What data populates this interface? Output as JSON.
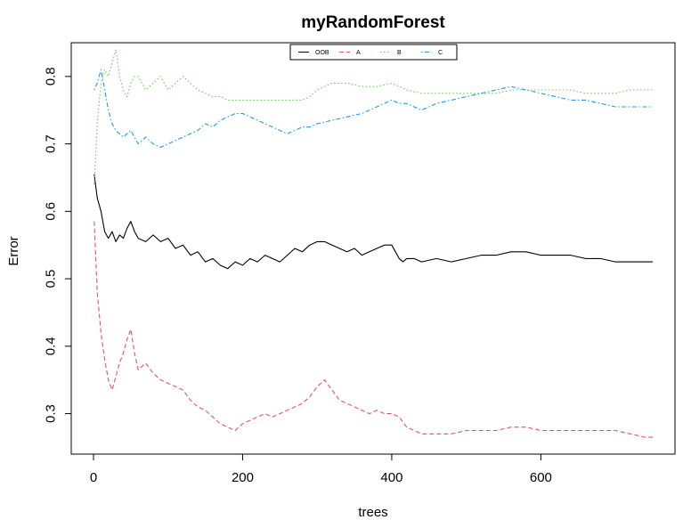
{
  "chart_data": {
    "type": "line",
    "title": "myRandomForest",
    "xlabel": "trees",
    "ylabel": "Error",
    "xlim": [
      0,
      750
    ],
    "ylim": [
      0.24,
      0.85
    ],
    "xticks": [
      0,
      200,
      400,
      600
    ],
    "yticks": [
      0.3,
      0.4,
      0.5,
      0.6,
      0.7,
      0.8
    ],
    "grid": false,
    "legend_position": "top",
    "series": [
      {
        "name": "OOB",
        "color": "#000000",
        "dash": "solid",
        "x": [
          1,
          5,
          10,
          15,
          20,
          25,
          30,
          35,
          40,
          45,
          50,
          55,
          60,
          70,
          80,
          90,
          100,
          110,
          120,
          130,
          140,
          150,
          160,
          170,
          180,
          190,
          200,
          210,
          220,
          230,
          240,
          250,
          260,
          270,
          280,
          290,
          300,
          310,
          320,
          330,
          340,
          350,
          360,
          370,
          380,
          390,
          400,
          405,
          410,
          415,
          420,
          430,
          440,
          460,
          480,
          500,
          520,
          540,
          560,
          580,
          600,
          620,
          640,
          660,
          680,
          700,
          720,
          740,
          750
        ],
        "values": [
          0.655,
          0.62,
          0.6,
          0.57,
          0.56,
          0.57,
          0.555,
          0.565,
          0.56,
          0.575,
          0.585,
          0.57,
          0.56,
          0.555,
          0.565,
          0.555,
          0.56,
          0.545,
          0.55,
          0.535,
          0.54,
          0.525,
          0.53,
          0.52,
          0.515,
          0.525,
          0.52,
          0.53,
          0.525,
          0.535,
          0.53,
          0.525,
          0.535,
          0.545,
          0.54,
          0.55,
          0.555,
          0.555,
          0.55,
          0.545,
          0.54,
          0.545,
          0.535,
          0.54,
          0.545,
          0.55,
          0.55,
          0.54,
          0.53,
          0.525,
          0.53,
          0.53,
          0.525,
          0.53,
          0.525,
          0.53,
          0.535,
          0.535,
          0.54,
          0.54,
          0.535,
          0.535,
          0.535,
          0.53,
          0.53,
          0.525,
          0.525,
          0.525,
          0.525
        ]
      },
      {
        "name": "A",
        "color": "#DF536B",
        "dash": "dashed",
        "x": [
          1,
          5,
          10,
          15,
          20,
          25,
          30,
          35,
          40,
          45,
          50,
          55,
          60,
          70,
          80,
          90,
          100,
          110,
          120,
          130,
          140,
          150,
          160,
          170,
          180,
          190,
          200,
          210,
          220,
          230,
          240,
          250,
          260,
          270,
          280,
          290,
          300,
          310,
          320,
          330,
          340,
          350,
          360,
          370,
          380,
          390,
          400,
          410,
          420,
          430,
          440,
          460,
          480,
          500,
          520,
          540,
          560,
          580,
          600,
          620,
          640,
          660,
          680,
          700,
          720,
          740,
          750
        ],
        "values": [
          0.585,
          0.48,
          0.42,
          0.38,
          0.35,
          0.335,
          0.355,
          0.375,
          0.39,
          0.41,
          0.425,
          0.39,
          0.365,
          0.375,
          0.36,
          0.35,
          0.345,
          0.34,
          0.335,
          0.32,
          0.31,
          0.305,
          0.295,
          0.285,
          0.28,
          0.275,
          0.285,
          0.29,
          0.295,
          0.3,
          0.295,
          0.3,
          0.305,
          0.31,
          0.315,
          0.325,
          0.34,
          0.35,
          0.335,
          0.32,
          0.315,
          0.31,
          0.305,
          0.3,
          0.305,
          0.3,
          0.3,
          0.295,
          0.28,
          0.275,
          0.27,
          0.27,
          0.27,
          0.275,
          0.275,
          0.275,
          0.28,
          0.28,
          0.275,
          0.275,
          0.275,
          0.275,
          0.275,
          0.275,
          0.27,
          0.265,
          0.265
        ]
      },
      {
        "name": "B",
        "color": "#61D04F",
        "dash": "dotted",
        "x": [
          1,
          5,
          10,
          15,
          20,
          25,
          30,
          35,
          40,
          45,
          50,
          55,
          60,
          70,
          80,
          90,
          100,
          110,
          120,
          130,
          140,
          150,
          160,
          170,
          180,
          200,
          220,
          240,
          260,
          280,
          290,
          300,
          320,
          340,
          360,
          380,
          400,
          420,
          440,
          460,
          480,
          500,
          520,
          540,
          560,
          580,
          600,
          620,
          640,
          660,
          680,
          700,
          720,
          740,
          750
        ],
        "values": [
          0.64,
          0.73,
          0.79,
          0.81,
          0.8,
          0.82,
          0.84,
          0.8,
          0.78,
          0.77,
          0.79,
          0.8,
          0.8,
          0.78,
          0.79,
          0.8,
          0.78,
          0.79,
          0.8,
          0.79,
          0.78,
          0.775,
          0.77,
          0.77,
          0.765,
          0.765,
          0.765,
          0.765,
          0.765,
          0.765,
          0.77,
          0.78,
          0.79,
          0.79,
          0.785,
          0.785,
          0.79,
          0.78,
          0.775,
          0.775,
          0.775,
          0.775,
          0.775,
          0.775,
          0.78,
          0.78,
          0.78,
          0.78,
          0.78,
          0.775,
          0.775,
          0.775,
          0.78,
          0.78,
          0.78
        ]
      },
      {
        "name": "C",
        "color": "#2297E6",
        "dash": "dotdash",
        "x": [
          1,
          5,
          10,
          15,
          20,
          25,
          30,
          40,
          50,
          60,
          70,
          80,
          90,
          100,
          110,
          120,
          130,
          140,
          150,
          160,
          170,
          180,
          190,
          200,
          210,
          220,
          230,
          240,
          250,
          260,
          270,
          280,
          290,
          300,
          320,
          340,
          360,
          380,
          400,
          410,
          420,
          430,
          440,
          460,
          480,
          500,
          520,
          540,
          560,
          580,
          600,
          620,
          640,
          660,
          680,
          700,
          720,
          740,
          750
        ],
        "values": [
          0.78,
          0.79,
          0.81,
          0.78,
          0.75,
          0.73,
          0.72,
          0.71,
          0.72,
          0.7,
          0.71,
          0.7,
          0.695,
          0.7,
          0.705,
          0.71,
          0.715,
          0.72,
          0.73,
          0.725,
          0.735,
          0.74,
          0.745,
          0.745,
          0.74,
          0.735,
          0.73,
          0.725,
          0.72,
          0.715,
          0.72,
          0.725,
          0.725,
          0.73,
          0.735,
          0.74,
          0.745,
          0.755,
          0.765,
          0.76,
          0.76,
          0.755,
          0.75,
          0.76,
          0.765,
          0.77,
          0.775,
          0.78,
          0.785,
          0.78,
          0.775,
          0.77,
          0.765,
          0.765,
          0.76,
          0.755,
          0.755,
          0.755,
          0.755
        ]
      }
    ]
  }
}
